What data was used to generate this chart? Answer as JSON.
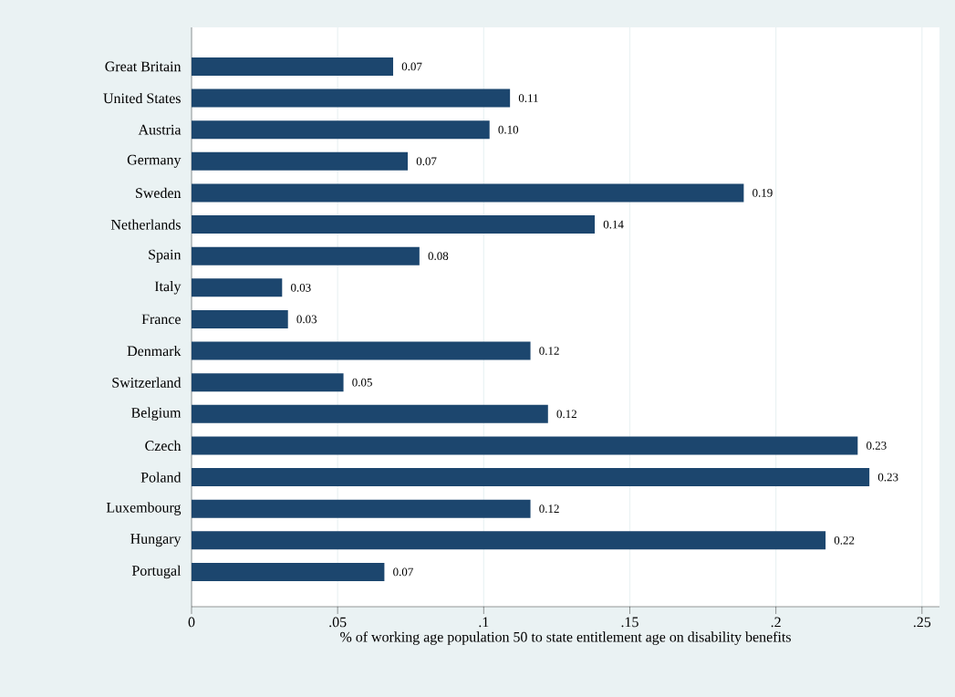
{
  "chart_data": {
    "type": "bar",
    "orientation": "horizontal",
    "xlabel": "% of working age population 50 to state entitlement age on disability benefits",
    "categories": [
      "Great Britain",
      "United States",
      "Austria",
      "Germany",
      "Sweden",
      "Netherlands",
      "Spain",
      "Italy",
      "France",
      "Denmark",
      "Switzerland",
      "Belgium",
      "Czech",
      "Poland",
      "Luxembourg",
      "Hungary",
      "Portugal"
    ],
    "values": [
      0.069,
      0.109,
      0.102,
      0.074,
      0.189,
      0.138,
      0.078,
      0.031,
      0.033,
      0.116,
      0.052,
      0.122,
      0.228,
      0.232,
      0.116,
      0.217,
      0.066
    ],
    "value_labels": [
      "0.07",
      "0.11",
      "0.10",
      "0.07",
      "0.19",
      "0.14",
      "0.08",
      "0.03",
      "0.03",
      "0.12",
      "0.05",
      "0.12",
      "0.23",
      "0.23",
      "0.12",
      "0.22",
      "0.07"
    ],
    "color": "#1c466e",
    "xlim": [
      0,
      0.256
    ],
    "xticks": [
      0,
      {
        "value": 0.05,
        "label": ".05"
      },
      {
        "value": 0.1,
        "label": ".1"
      },
      {
        "value": 0.15,
        "label": ".15"
      },
      {
        "value": 0.2,
        "label": ".2"
      },
      {
        "value": 0.25,
        "label": ".25"
      }
    ],
    "grid": "x"
  }
}
